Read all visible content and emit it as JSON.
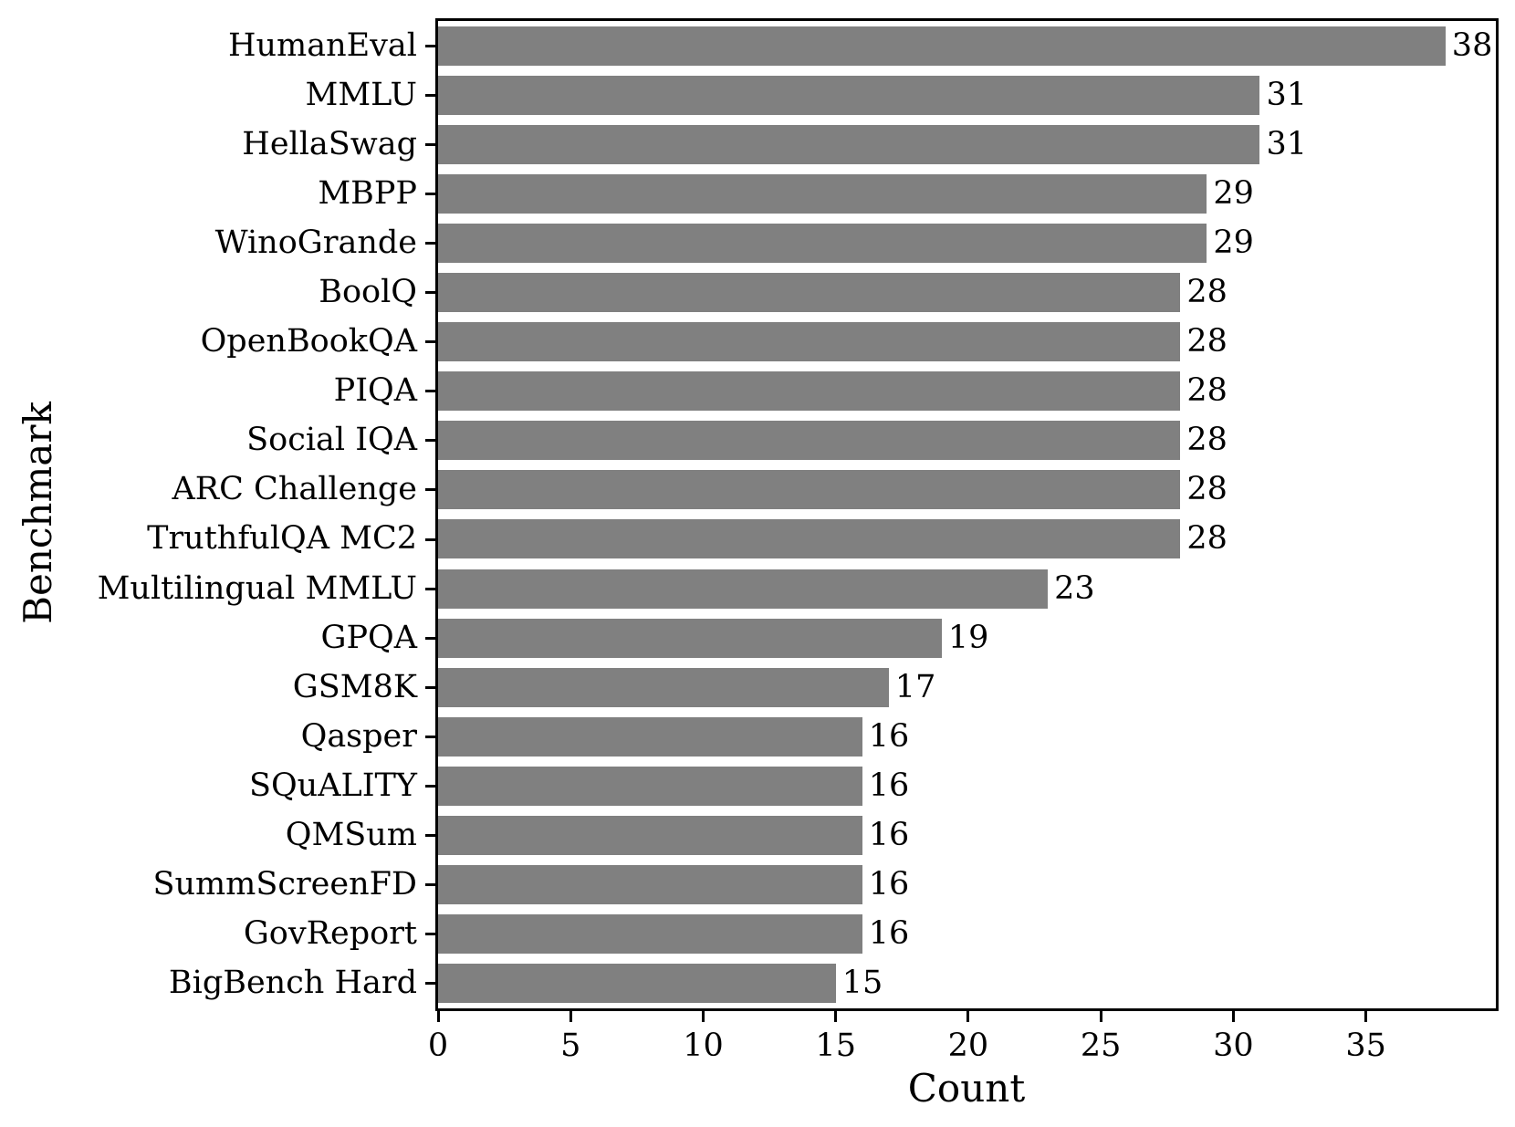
{
  "figure": {
    "background_color": "#ffffff",
    "bar_color": "#808080",
    "axis_color": "#000000",
    "text_color": "#000000"
  },
  "chart_data": {
    "type": "bar",
    "orientation": "horizontal",
    "title": "",
    "xlabel": "Count",
    "ylabel": "Benchmark",
    "xlim": [
      0,
      39.9
    ],
    "xticks": [
      0,
      5,
      10,
      15,
      20,
      25,
      30,
      35
    ],
    "grid": false,
    "legend": null,
    "categories": [
      "HumanEval",
      "MMLU",
      "HellaSwag",
      "MBPP",
      "WinoGrande",
      "BoolQ",
      "OpenBookQA",
      "PIQA",
      "Social IQA",
      "ARC Challenge",
      "TruthfulQA MC2",
      "Multilingual MMLU",
      "GPQA",
      "GSM8K",
      "Qasper",
      "SQuALITY",
      "QMSum",
      "SummScreenFD",
      "GovReport",
      "BigBench Hard"
    ],
    "values": [
      38,
      31,
      31,
      29,
      29,
      28,
      28,
      28,
      28,
      28,
      28,
      23,
      19,
      17,
      16,
      16,
      16,
      16,
      16,
      15
    ],
    "bar_value_labels": [
      "38",
      "31",
      "31",
      "29",
      "29",
      "28",
      "28",
      "28",
      "28",
      "28",
      "28",
      "23",
      "19",
      "17",
      "16",
      "16",
      "16",
      "16",
      "16",
      "15"
    ]
  }
}
